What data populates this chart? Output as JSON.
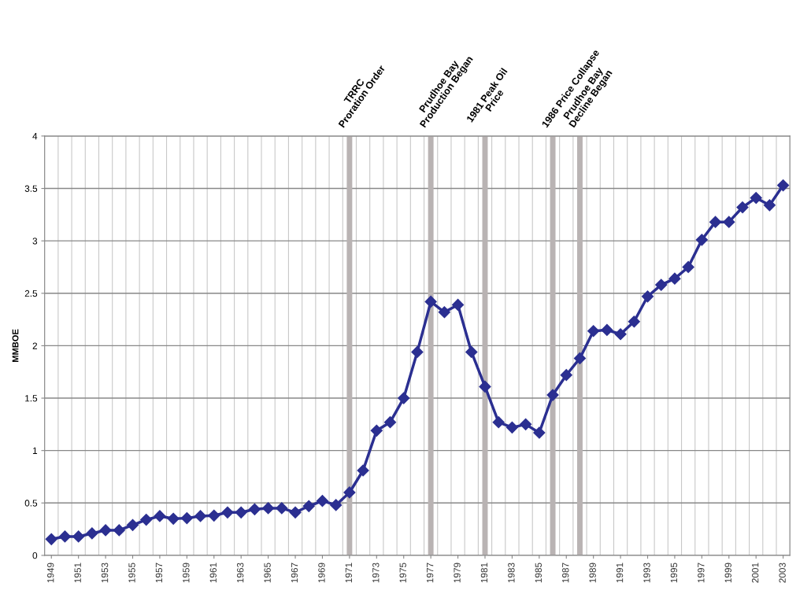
{
  "chart_data": {
    "type": "line",
    "ylabel": "MMBOE",
    "x": [
      1949,
      1950,
      1951,
      1952,
      1953,
      1954,
      1955,
      1956,
      1957,
      1958,
      1959,
      1960,
      1961,
      1962,
      1963,
      1964,
      1965,
      1966,
      1967,
      1968,
      1969,
      1970,
      1971,
      1972,
      1973,
      1974,
      1975,
      1976,
      1977,
      1978,
      1979,
      1980,
      1981,
      1982,
      1983,
      1984,
      1985,
      1986,
      1987,
      1988,
      1989,
      1990,
      1991,
      1992,
      1993,
      1994,
      1995,
      1996,
      1997,
      1998,
      1999,
      2000,
      2001,
      2002,
      2003
    ],
    "series": [
      {
        "color": "#2b2f91",
        "values": [
          0.155,
          0.18,
          0.18,
          0.21,
          0.24,
          0.24,
          0.29,
          0.34,
          0.375,
          0.35,
          0.355,
          0.375,
          0.38,
          0.41,
          0.41,
          0.44,
          0.45,
          0.45,
          0.41,
          0.47,
          0.52,
          0.48,
          0.6,
          0.81,
          1.19,
          1.27,
          1.5,
          1.94,
          2.42,
          2.32,
          2.39,
          1.94,
          1.61,
          1.27,
          1.22,
          1.25,
          1.17,
          1.53,
          1.72,
          1.88,
          2.14,
          2.15,
          2.11,
          2.23,
          2.47,
          2.58,
          2.64,
          2.75,
          3.01,
          3.18,
          3.18,
          3.32,
          3.41,
          3.34,
          3.53
        ]
      }
    ],
    "xlim": [
      1948.5,
      2003.5
    ],
    "xticks": [
      1949,
      1951,
      1953,
      1955,
      1957,
      1959,
      1961,
      1963,
      1965,
      1967,
      1969,
      1971,
      1973,
      1975,
      1977,
      1979,
      1981,
      1983,
      1985,
      1987,
      1989,
      1991,
      1993,
      1995,
      1997,
      1999,
      2001,
      2003
    ],
    "ylim": [
      0,
      4
    ],
    "yticks": [
      0,
      0.5,
      1,
      1.5,
      2,
      2.5,
      3,
      3.5,
      4
    ],
    "grid": true,
    "marker": "diamond",
    "line_style": "solid",
    "ref_lines": [
      {
        "axis": "x",
        "value": 1971,
        "label": "TRRC\nProration Order",
        "color": "#b9b3b3"
      },
      {
        "axis": "x",
        "value": 1977,
        "label": "Prudhoe Bay\nProduction Began",
        "color": "#b9b3b3"
      },
      {
        "axis": "x",
        "value": 1981,
        "label": "1981 Peak Oil\nPrice",
        "color": "#b9b3b3"
      },
      {
        "axis": "x",
        "value": 1986,
        "label": "1986 Price Collapse",
        "color": "#b9b3b3"
      },
      {
        "axis": "x",
        "value": 1988,
        "label": "Prudhoe Bay\nDecline Began",
        "color": "#b9b3b3"
      }
    ]
  }
}
